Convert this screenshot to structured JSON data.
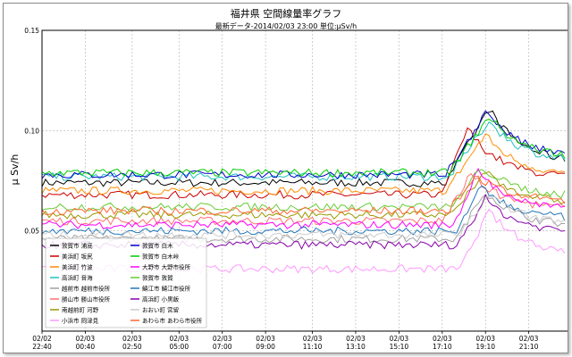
{
  "chart_data": {
    "type": "line",
    "title": "福井県 空間線量率グラフ",
    "subtitle": "最新データ-2014/02/03 23:00 単位:μSv/h",
    "ylabel": "μ Sv/h",
    "xlabel": "",
    "ylim": [
      0,
      0.15
    ],
    "yticks": [
      "0.15",
      "0.10",
      "0.05"
    ],
    "xticks": [
      {
        "t": 0,
        "date": "02/02",
        "time": "22:40"
      },
      {
        "t": 120,
        "date": "02/03",
        "time": "00:40"
      },
      {
        "t": 250,
        "date": "02/03",
        "time": "02:50"
      },
      {
        "t": 380,
        "date": "02/03",
        "time": "05:00"
      },
      {
        "t": 500,
        "date": "02/03",
        "time": "07:00"
      },
      {
        "t": 620,
        "date": "02/03",
        "time": "09:00"
      },
      {
        "t": 750,
        "date": "02/03",
        "time": "11:10"
      },
      {
        "t": 870,
        "date": "02/03",
        "time": "13:10"
      },
      {
        "t": 990,
        "date": "02/03",
        "time": "15:10"
      },
      {
        "t": 1110,
        "date": "02/03",
        "time": "17:10"
      },
      {
        "t": 1230,
        "date": "02/03",
        "time": "19:10"
      },
      {
        "t": 1350,
        "date": "02/03",
        "time": "21:10"
      }
    ],
    "x_range_minutes": [
      0,
      1460
    ],
    "grid": true,
    "legend_position": "bottom-left",
    "series": [
      {
        "name": "敦賀市 浦底",
        "color": "#000000",
        "base": 0.074,
        "peak": 0.111,
        "peak_t": 1240,
        "rise_t": 1120
      },
      {
        "name": "美浜町 坂尻",
        "color": "#cc0000",
        "base": 0.068,
        "peak": 0.101,
        "peak_t": 1180,
        "rise_t": 1110
      },
      {
        "name": "美浜町 竹波",
        "color": "#ff8c00",
        "base": 0.07,
        "peak": 0.098,
        "peak_t": 1230,
        "rise_t": 1120
      },
      {
        "name": "高浜町 音海",
        "color": "#20c0c0",
        "base": 0.077,
        "peak": 0.105,
        "peak_t": 1240,
        "rise_t": 1130
      },
      {
        "name": "越前市 越前市役所",
        "color": "#a0a0a0",
        "base": 0.046,
        "peak": 0.07,
        "peak_t": 1230,
        "rise_t": 1150
      },
      {
        "name": "勝山市 勝山市役所",
        "color": "#ff7070",
        "base": 0.055,
        "peak": 0.078,
        "peak_t": 1190,
        "rise_t": 1110
      },
      {
        "name": "南越前町 河野",
        "color": "#999900",
        "base": 0.058,
        "peak": 0.08,
        "peak_t": 1230,
        "rise_t": 1140
      },
      {
        "name": "小浜市 岡津見",
        "color": "#ff99ff",
        "base": 0.031,
        "peak": 0.06,
        "peak_t": 1240,
        "rise_t": 1160
      },
      {
        "name": "敦賀市 白木",
        "color": "#0000cc",
        "base": 0.078,
        "peak": 0.11,
        "peak_t": 1235,
        "rise_t": 1120
      },
      {
        "name": "敦賀市 白木峠",
        "color": "#00cc00",
        "base": 0.079,
        "peak": 0.107,
        "peak_t": 1240,
        "rise_t": 1130
      },
      {
        "name": "大野市 大野市役所",
        "color": "#ff00ff",
        "base": 0.053,
        "peak": 0.08,
        "peak_t": 1210,
        "rise_t": 1140
      },
      {
        "name": "敦賀市 敦賀",
        "color": "#66cc33",
        "base": 0.062,
        "peak": 0.082,
        "peak_t": 1220,
        "rise_t": 1140
      },
      {
        "name": "鯖江市 鯖江市役所",
        "color": "#2277bb",
        "base": 0.05,
        "peak": 0.072,
        "peak_t": 1220,
        "rise_t": 1150
      },
      {
        "name": "高浜町 小黒飯",
        "color": "#8800aa",
        "base": 0.043,
        "peak": 0.066,
        "peak_t": 1230,
        "rise_t": 1150
      },
      {
        "name": "おおい町 宮留",
        "color": "#cccccc",
        "base": 0.048,
        "peak": 0.068,
        "peak_t": 1240,
        "rise_t": 1160
      },
      {
        "name": "あわら市 あわら市役所",
        "color": "#ff6633",
        "base": 0.06,
        "peak": 0.078,
        "peak_t": 1200,
        "rise_t": 1130
      }
    ]
  }
}
